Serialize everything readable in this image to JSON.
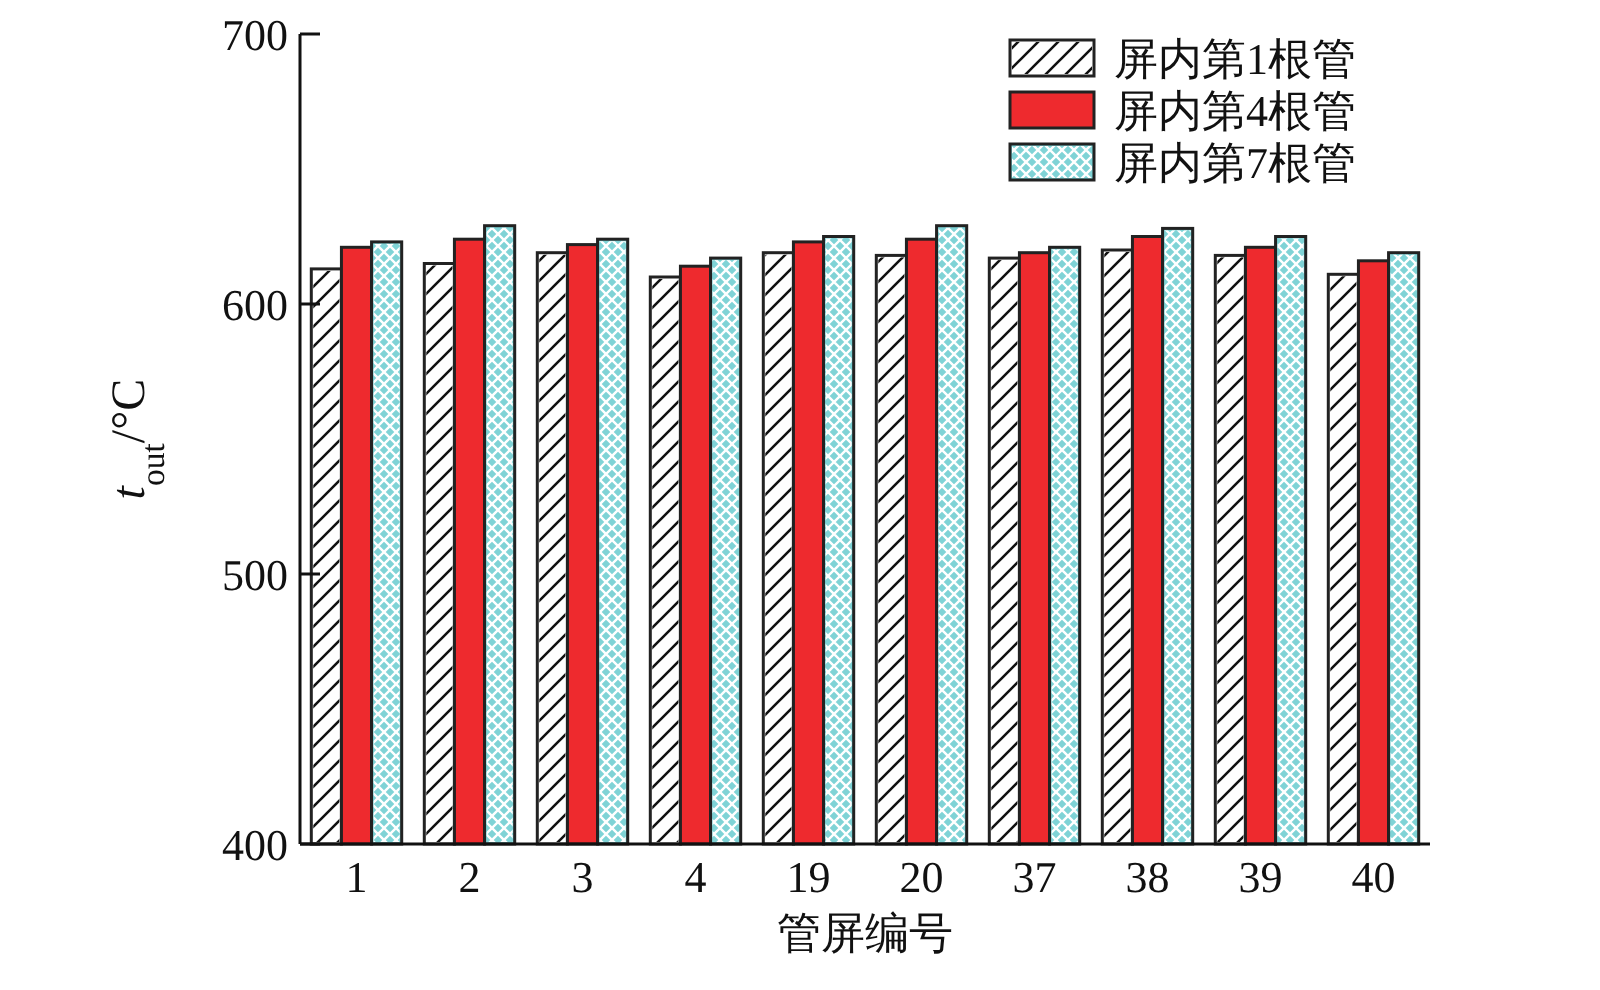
{
  "chart_data": {
    "type": "bar",
    "xlabel": "管屏编号",
    "ylabel": "*t*$_{out}$/°C",
    "categories": [
      "1",
      "2",
      "3",
      "4",
      "19",
      "20",
      "37",
      "38",
      "39",
      "40"
    ],
    "series": [
      {
        "name": "屏内第1根管",
        "color": "#ffffff",
        "values": [
          613,
          615,
          619,
          610,
          619,
          618,
          617,
          620,
          618,
          611
        ]
      },
      {
        "name": "屏内第4根管",
        "color": "#ee2a2e",
        "values": [
          621,
          624,
          622,
          614,
          623,
          624,
          619,
          625,
          621,
          616
        ]
      },
      {
        "name": "屏内第7根管",
        "color": "#7fd3d6",
        "values": [
          623,
          629,
          624,
          617,
          625,
          629,
          621,
          628,
          625,
          619
        ]
      }
    ],
    "ylim": [
      400,
      700
    ],
    "yticks": [
      400,
      500,
      600,
      700
    ],
    "grid": false,
    "legend": "top right"
  }
}
